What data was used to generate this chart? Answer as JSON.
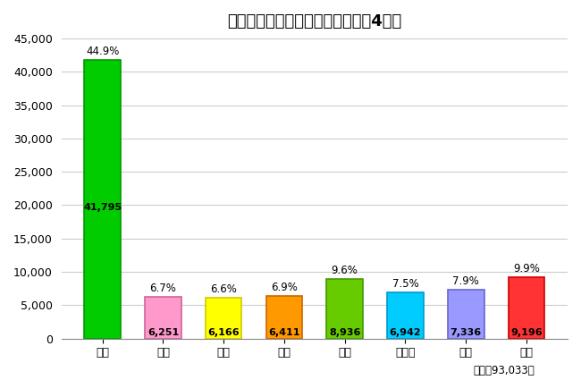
{
  "title": "管内地検別の事件受理人員（令和4年）",
  "categories": [
    "福岡",
    "佐賀",
    "長崎",
    "大分",
    "熊本",
    "鹿児島",
    "宮崎",
    "那覇"
  ],
  "values": [
    41795,
    6251,
    6166,
    6411,
    8936,
    6942,
    7336,
    9196
  ],
  "percentages": [
    "44.9%",
    "6.7%",
    "6.6%",
    "6.9%",
    "9.6%",
    "7.5%",
    "7.9%",
    "9.9%"
  ],
  "bar_colors": [
    "#00CC00",
    "#FF99CC",
    "#FFFF00",
    "#FF9900",
    "#66CC00",
    "#00CCFF",
    "#9999FF",
    "#FF3333"
  ],
  "bar_edge_colors": [
    "#009900",
    "#CC6699",
    "#CCCC00",
    "#CC6600",
    "#449900",
    "#0099CC",
    "#6666CC",
    "#CC0000"
  ],
  "ylim": [
    0,
    45000
  ],
  "yticks": [
    0,
    5000,
    10000,
    15000,
    20000,
    25000,
    30000,
    35000,
    40000,
    45000
  ],
  "footnote": "（合計93,033）",
  "background_color": "#FFFFFF",
  "grid_color": "#CCCCCC",
  "title_fontsize": 13,
  "tick_fontsize": 9,
  "annotation_fontsize": 8.5,
  "value_fontsize": 8,
  "footnote_fontsize": 8.5
}
